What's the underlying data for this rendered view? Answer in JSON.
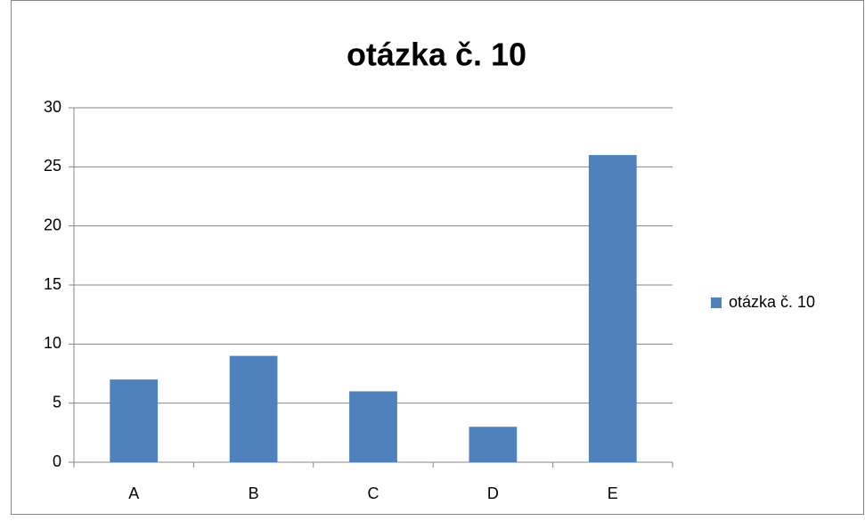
{
  "chart_data": {
    "type": "bar",
    "title": "otázka č. 10",
    "categories": [
      "A",
      "B",
      "C",
      "D",
      "E"
    ],
    "series": [
      {
        "name": "otázka č. 10",
        "color": "#4f81bd",
        "values": [
          7,
          9,
          6,
          3,
          26
        ]
      }
    ],
    "ylim": [
      0,
      30
    ],
    "yticks": [
      0,
      5,
      10,
      15,
      20,
      25,
      30
    ],
    "grid": true,
    "legend": "right"
  }
}
